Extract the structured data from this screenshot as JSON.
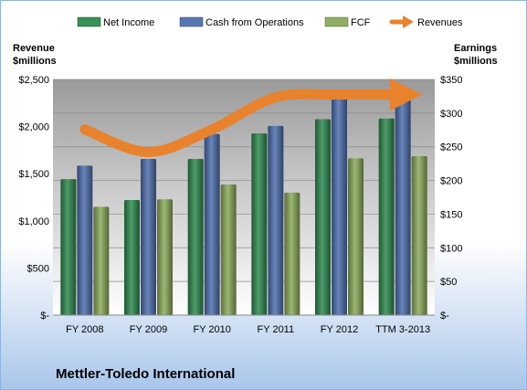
{
  "chart_data": {
    "type": "bar",
    "company": "Mettler-Toledo International",
    "categories": [
      "FY 2008",
      "FY 2009",
      "FY 2010",
      "FY 2011",
      "FY 2012",
      "TTM 3-2013"
    ],
    "series": [
      {
        "name": "Net Income",
        "axis": "right",
        "color": "#2e8b4e",
        "values": [
          202,
          171,
          232,
          270,
          291,
          292
        ]
      },
      {
        "name": "Cash from Operations",
        "axis": "right",
        "color": "#4f6fae",
        "values": [
          222,
          232,
          269,
          281,
          327,
          332
        ]
      },
      {
        "name": "FCF",
        "axis": "right",
        "color": "#8aab5a",
        "values": [
          161,
          172,
          194,
          182,
          233,
          236
        ]
      },
      {
        "name": "Revenues",
        "axis": "left",
        "type": "line",
        "color": "#e8822c",
        "values": [
          1970,
          1730,
          1970,
          2310,
          2340,
          2340
        ]
      }
    ],
    "left_axis": {
      "label_line1": "Revenue",
      "label_line2": "$millions",
      "ylim": [
        0,
        2500
      ],
      "ticks": [
        "$-",
        "$500",
        "$1,000",
        "$1,500",
        "$2,000",
        "$2,500"
      ]
    },
    "right_axis": {
      "label_line1": "Earnings",
      "label_line2": "$millions",
      "ylim": [
        0,
        350
      ],
      "ticks": [
        "$-",
        "$50",
        "$100",
        "$150",
        "$200",
        "$250",
        "$300",
        "$350"
      ]
    },
    "legend_position": "top",
    "grid": true
  }
}
